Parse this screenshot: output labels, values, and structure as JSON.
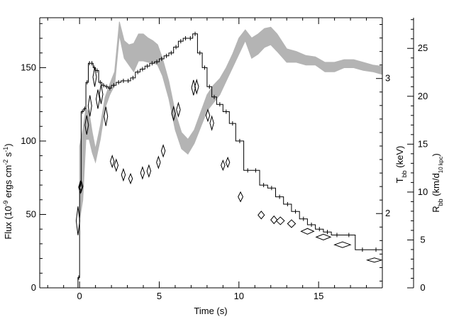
{
  "chart_data": {
    "type": "line",
    "xlabel": "Time (s)",
    "ylabel_parts": {
      "a": "Flux (10",
      "a_sup": "-9",
      "b": " ergs cm",
      "b_sup": "-2",
      "c": " s",
      "c_sup": "-1",
      "d": ")"
    },
    "y2label": {
      "base": "T",
      "sub": "bb",
      "rest": " (keV)"
    },
    "y3label": {
      "base": "R",
      "sub": "bb",
      "rest": " (km/d",
      "sub2": "10 kpc",
      "end": ")"
    },
    "xlim": [
      -2.5,
      19.0
    ],
    "ylim": [
      0,
      184
    ],
    "y2lim": [
      1.45,
      3.45
    ],
    "y3lim": [
      0,
      28.2
    ],
    "x_ticks": [
      0,
      5,
      10,
      15
    ],
    "x_tick_labels": [
      "0",
      "5",
      "10",
      "15"
    ],
    "y_ticks": [
      0,
      50,
      100,
      150
    ],
    "y_tick_labels": [
      "0",
      "50",
      "100",
      "150"
    ],
    "y2_ticks": [
      2,
      3
    ],
    "y2_tick_labels": [
      "2",
      "3"
    ],
    "y3_ticks": [
      0,
      5,
      10,
      15,
      20,
      25
    ],
    "y3_tick_labels": [
      "0",
      "5",
      "10",
      "15",
      "20",
      "25"
    ],
    "series": [
      {
        "role": "flux-histogram",
        "color": "#000000",
        "edges": [
          -0.1,
          0.0,
          0.1,
          0.25,
          0.4,
          0.55,
          0.7,
          0.85,
          1.0,
          1.2,
          1.4,
          1.6,
          1.8,
          2.0,
          2.3,
          2.6,
          2.9,
          3.2,
          3.5,
          3.8,
          4.1,
          4.4,
          4.7,
          5.0,
          5.3,
          5.6,
          5.9,
          6.2,
          6.5,
          6.8,
          7.1,
          7.4,
          7.7,
          8.0,
          8.3,
          8.6,
          9.0,
          9.4,
          9.8,
          10.3,
          10.8,
          11.3,
          11.8,
          12.3,
          12.8,
          13.3,
          13.8,
          14.3,
          14.8,
          15.3,
          15.8,
          16.5,
          17.3,
          18.2,
          19.0
        ],
        "values": [
          7,
          70,
          120,
          122,
          140,
          153,
          153,
          150,
          148,
          140,
          138,
          137,
          136,
          138,
          140,
          141,
          141,
          143,
          147,
          149,
          151,
          153,
          154,
          156,
          158,
          160,
          164,
          168,
          170,
          170,
          173,
          160,
          150,
          137,
          130,
          125,
          120,
          112,
          100,
          80,
          80,
          70,
          68,
          62,
          57,
          52,
          47,
          43,
          40,
          38,
          36,
          36,
          26,
          26
        ]
      },
      {
        "role": "temperature-band",
        "color": "#b4b4b4",
        "x": [
          0.0,
          0.2,
          0.4,
          0.6,
          0.8,
          1.0,
          1.3,
          1.6,
          1.9,
          2.2,
          2.5,
          2.8,
          3.1,
          3.4,
          3.7,
          4.0,
          4.3,
          4.6,
          4.9,
          5.2,
          5.6,
          6.0,
          6.4,
          6.8,
          7.2,
          7.6,
          8.0,
          8.4,
          8.8,
          9.2,
          9.6,
          10.0,
          10.4,
          10.8,
          11.2,
          11.6,
          12.0,
          12.4,
          13.0,
          13.6,
          14.2,
          14.8,
          15.4,
          16.0,
          16.6,
          17.2,
          17.8,
          18.4,
          19.0
        ],
        "lower": [
          1.95,
          2.1,
          2.55,
          2.55,
          2.45,
          2.38,
          2.55,
          2.78,
          2.88,
          2.95,
          3.32,
          3.15,
          3.1,
          3.05,
          3.13,
          3.13,
          3.12,
          3.12,
          3.1,
          3.02,
          2.85,
          2.62,
          2.48,
          2.44,
          2.52,
          2.64,
          2.76,
          2.82,
          2.88,
          2.98,
          3.08,
          3.18,
          3.28,
          3.15,
          3.18,
          3.23,
          3.25,
          3.2,
          3.12,
          3.12,
          3.1,
          3.1,
          3.05,
          3.05,
          3.08,
          3.08,
          3.06,
          3.05,
          3.03
        ],
        "upper": [
          2.5,
          2.62,
          2.78,
          2.75,
          2.6,
          2.48,
          2.65,
          2.86,
          2.96,
          3.05,
          3.42,
          3.28,
          3.25,
          3.26,
          3.33,
          3.33,
          3.3,
          3.28,
          3.25,
          3.15,
          2.98,
          2.75,
          2.6,
          2.55,
          2.62,
          2.75,
          2.88,
          2.95,
          3.0,
          3.08,
          3.18,
          3.3,
          3.36,
          3.3,
          3.33,
          3.37,
          3.38,
          3.33,
          3.22,
          3.2,
          3.17,
          3.16,
          3.12,
          3.12,
          3.14,
          3.14,
          3.12,
          3.1,
          3.09
        ]
      },
      {
        "role": "radius-diamonds",
        "color": "#000000",
        "x": [
          -0.1,
          0.05,
          0.1,
          0.45,
          0.65,
          0.95,
          1.15,
          1.35,
          1.65,
          2.05,
          2.3,
          2.75,
          3.2,
          3.95,
          4.35,
          4.95,
          5.25,
          5.9,
          6.2,
          7.15,
          7.35,
          8.05,
          8.3,
          9.0,
          9.3,
          10.1,
          11.4,
          12.2,
          12.6,
          13.3,
          14.3,
          15.3,
          16.5,
          18.5
        ],
        "y": [
          7.0,
          10.5,
          10.6,
          17.0,
          19.0,
          22.0,
          19.7,
          20.2,
          17.9,
          13.2,
          12.8,
          11.8,
          11.4,
          12.0,
          12.2,
          13.1,
          14.3,
          18.2,
          18.6,
          20.9,
          21.0,
          18.0,
          17.2,
          12.8,
          13.1,
          9.5,
          7.6,
          7.1,
          7.0,
          6.7,
          5.9,
          5.3,
          4.5,
          2.9
        ],
        "err": [
          1.5,
          0.6,
          0.6,
          1.0,
          1.1,
          1.0,
          1.0,
          1.0,
          1.0,
          0.6,
          0.6,
          0.6,
          0.5,
          0.6,
          0.6,
          0.6,
          0.6,
          0.7,
          0.7,
          0.8,
          0.7,
          0.6,
          0.7,
          0.5,
          0.5,
          0.5,
          0.4,
          0.4,
          0.4,
          0.4,
          0.3,
          0.3,
          0.3,
          0.2
        ],
        "hw": [
          0.1,
          0.1,
          0.1,
          0.1,
          0.1,
          0.1,
          0.1,
          0.1,
          0.1,
          0.12,
          0.12,
          0.12,
          0.12,
          0.12,
          0.12,
          0.12,
          0.12,
          0.12,
          0.12,
          0.12,
          0.12,
          0.12,
          0.12,
          0.12,
          0.12,
          0.15,
          0.2,
          0.2,
          0.25,
          0.25,
          0.4,
          0.45,
          0.5,
          0.45
        ]
      }
    ]
  }
}
